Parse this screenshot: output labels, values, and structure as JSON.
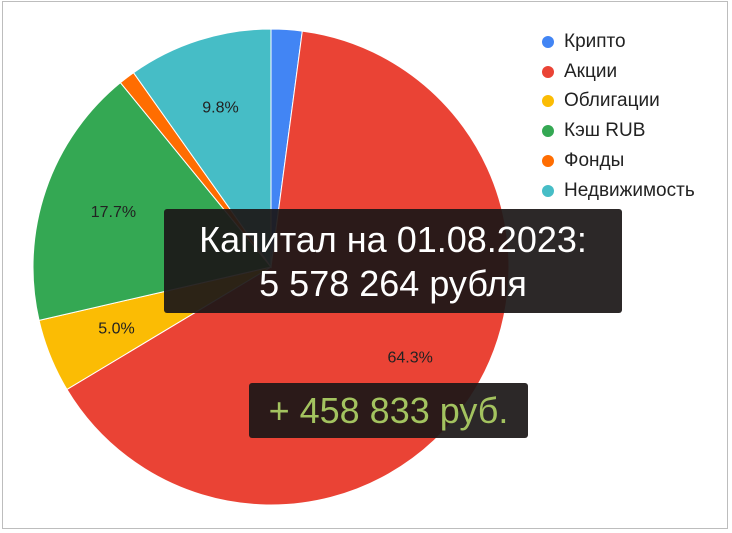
{
  "chart_data": {
    "type": "pie",
    "categories": [
      "Крипто",
      "Акции",
      "Облигации",
      "Кэш RUB",
      "Фонды",
      "Недвижимость"
    ],
    "values": [
      2.1,
      64.3,
      5.0,
      17.7,
      1.1,
      9.8
    ],
    "data_labels": [
      "",
      "64.3%",
      "5.0%",
      "17.7%",
      "",
      "9.8%"
    ],
    "colors": [
      "#4285f4",
      "#ea4335",
      "#fbbc04",
      "#34a853",
      "#ff6d01",
      "#46bdc6"
    ],
    "start_angle_deg": 0,
    "direction": "clockwise",
    "legend_position": "top-right"
  },
  "overlay": {
    "capital_line1": "Капитал на 01.08.2023:",
    "capital_line2": "5 578 264 рубля",
    "gain": "+ 458 833 руб."
  }
}
